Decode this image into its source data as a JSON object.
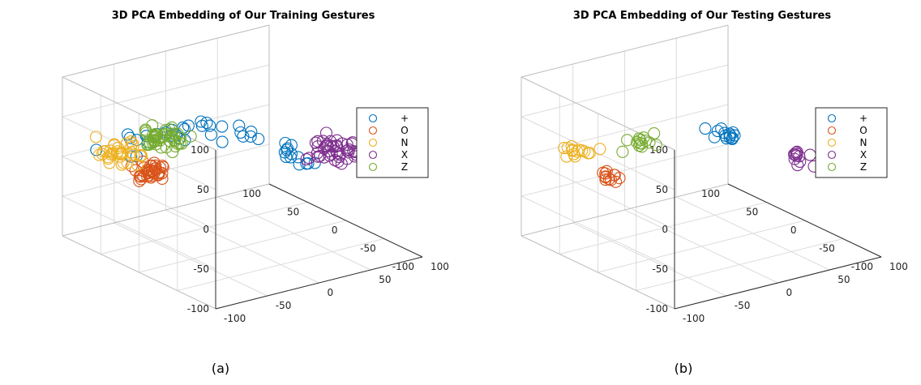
{
  "chart_data": [
    {
      "type": "scatter",
      "title": "3D PCA Embedding of Our Training Gestures",
      "caption": "(a)",
      "axes": {
        "x_range": [
          -100,
          100
        ],
        "y_range": [
          -100,
          100
        ],
        "z_range": [
          -100,
          100
        ]
      },
      "ticks": {
        "z": [
          "100",
          "50",
          "0",
          "-50",
          "-100"
        ],
        "left": [
          "100",
          "50",
          "0",
          "-50",
          "-100"
        ],
        "right": [
          "-100",
          "-50",
          "0",
          "50",
          "100"
        ]
      },
      "legend": {
        "position": "right",
        "entries": [
          "+",
          "O",
          "N",
          "X",
          "Z"
        ]
      },
      "series": [
        {
          "name": "+",
          "color": "#0072BD",
          "center": [
            15,
            10,
            25
          ],
          "spread": 28,
          "count": 45
        },
        {
          "name": "O",
          "color": "#D95319",
          "center": [
            60,
            -45,
            -20
          ],
          "spread": 7,
          "count": 40
        },
        {
          "name": "N",
          "color": "#EDB120",
          "center": [
            70,
            -70,
            10
          ],
          "spread": 10,
          "count": 35
        },
        {
          "name": "X",
          "color": "#7E2F8E",
          "center": [
            -35,
            65,
            15
          ],
          "spread": 10,
          "count": 45
        },
        {
          "name": "Z",
          "color": "#77AC30",
          "center": [
            20,
            -60,
            45
          ],
          "spread": 9,
          "count": 45
        }
      ]
    },
    {
      "type": "scatter",
      "title": "3D PCA Embedding of Our Testing Gestures",
      "caption": "(b)",
      "axes": {
        "x_range": [
          -100,
          100
        ],
        "y_range": [
          -100,
          100
        ],
        "z_range": [
          -100,
          100
        ]
      },
      "ticks": {
        "z": [
          "100",
          "50",
          "0",
          "-50",
          "-100"
        ],
        "left": [
          "100",
          "50",
          "0",
          "-50",
          "-100"
        ],
        "right": [
          "-100",
          "-50",
          "0",
          "50",
          "100"
        ]
      },
      "legend": {
        "position": "right",
        "entries": [
          "+",
          "O",
          "N",
          "X",
          "Z"
        ]
      },
      "series": [
        {
          "name": "+",
          "color": "#0072BD",
          "center": [
            -5,
            20,
            35
          ],
          "spread": 6,
          "count": 14
        },
        {
          "name": "O",
          "color": "#D95319",
          "center": [
            60,
            -45,
            -25
          ],
          "spread": 5,
          "count": 12
        },
        {
          "name": "N",
          "color": "#EDB120",
          "center": [
            70,
            -70,
            10
          ],
          "spread": 8,
          "count": 15
        },
        {
          "name": "X",
          "color": "#7E2F8E",
          "center": [
            -40,
            60,
            10
          ],
          "spread": 7,
          "count": 14
        },
        {
          "name": "Z",
          "color": "#77AC30",
          "center": [
            25,
            -45,
            35
          ],
          "spread": 6,
          "count": 14
        }
      ]
    }
  ]
}
